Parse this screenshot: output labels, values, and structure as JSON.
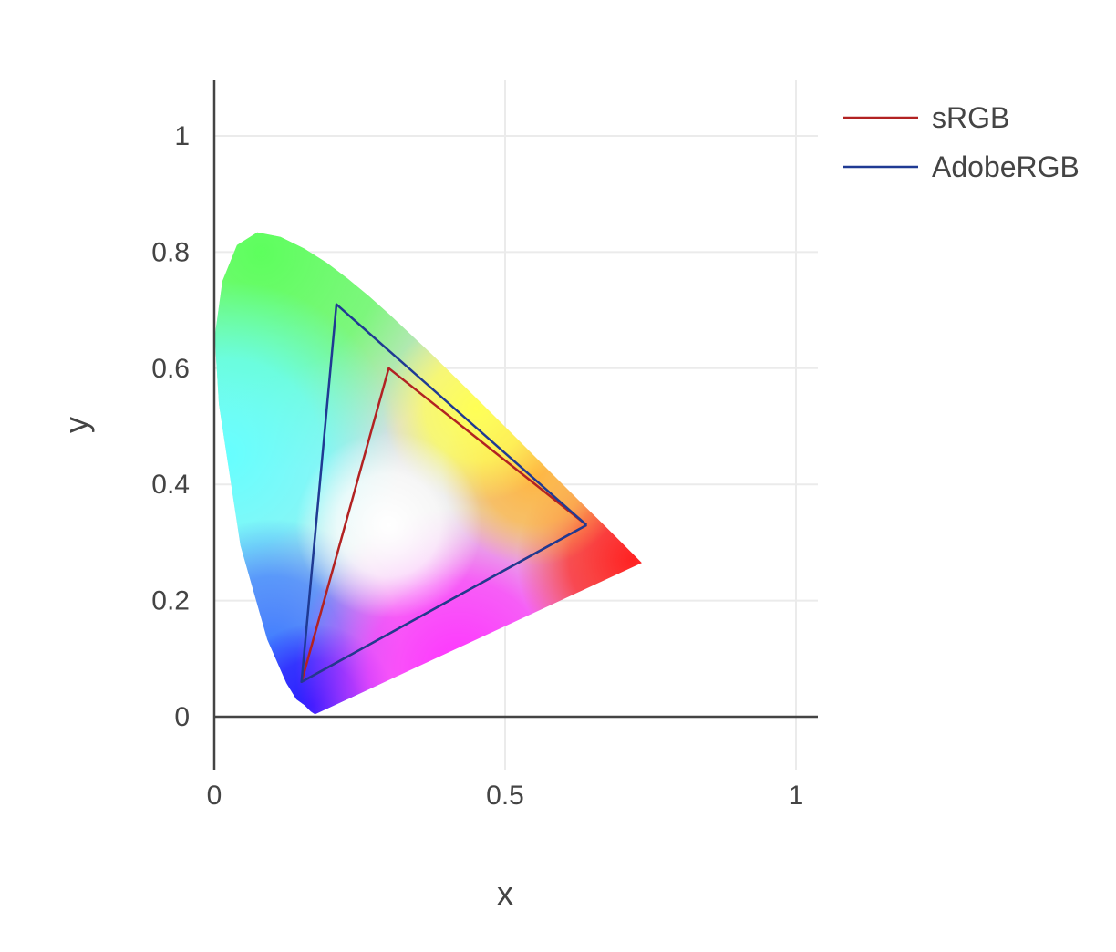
{
  "chart_data": {
    "type": "line",
    "xlabel": "x",
    "ylabel": "y",
    "xlim": [
      0,
      1.04
    ],
    "ylim": [
      -0.09,
      1.09
    ],
    "x_ticks": [
      0,
      0.5,
      1
    ],
    "x_tick_labels": [
      "0",
      "0.5",
      "1"
    ],
    "y_ticks": [
      0,
      0.2,
      0.4,
      0.6,
      0.8,
      1
    ],
    "y_tick_labels": [
      "0",
      "0.2",
      "0.4",
      "0.6",
      "0.8",
      "1"
    ],
    "grid": true,
    "legend_position": "top-right",
    "background": {
      "name": "spectral-locus",
      "x": [
        0.175,
        0.172,
        0.166,
        0.155,
        0.141,
        0.124,
        0.091,
        0.045,
        0.008,
        0.001,
        0.014,
        0.039,
        0.074,
        0.114,
        0.155,
        0.193,
        0.23,
        0.266,
        0.302,
        0.374,
        0.444,
        0.512,
        0.575,
        0.627,
        0.666,
        0.692,
        0.735
      ],
      "y": [
        0.005,
        0.005,
        0.009,
        0.02,
        0.03,
        0.058,
        0.133,
        0.295,
        0.538,
        0.655,
        0.75,
        0.812,
        0.834,
        0.826,
        0.806,
        0.782,
        0.754,
        0.724,
        0.692,
        0.624,
        0.555,
        0.487,
        0.424,
        0.372,
        0.334,
        0.308,
        0.265
      ]
    },
    "series": [
      {
        "name": "sRGB",
        "color": "#b22222",
        "x": [
          0.64,
          0.3,
          0.15,
          0.64
        ],
        "y": [
          0.33,
          0.6,
          0.06,
          0.33
        ]
      },
      {
        "name": "AdobeRGB",
        "color": "#1f3a93",
        "x": [
          0.64,
          0.21,
          0.15,
          0.64
        ],
        "y": [
          0.33,
          0.71,
          0.06,
          0.33
        ]
      }
    ]
  }
}
